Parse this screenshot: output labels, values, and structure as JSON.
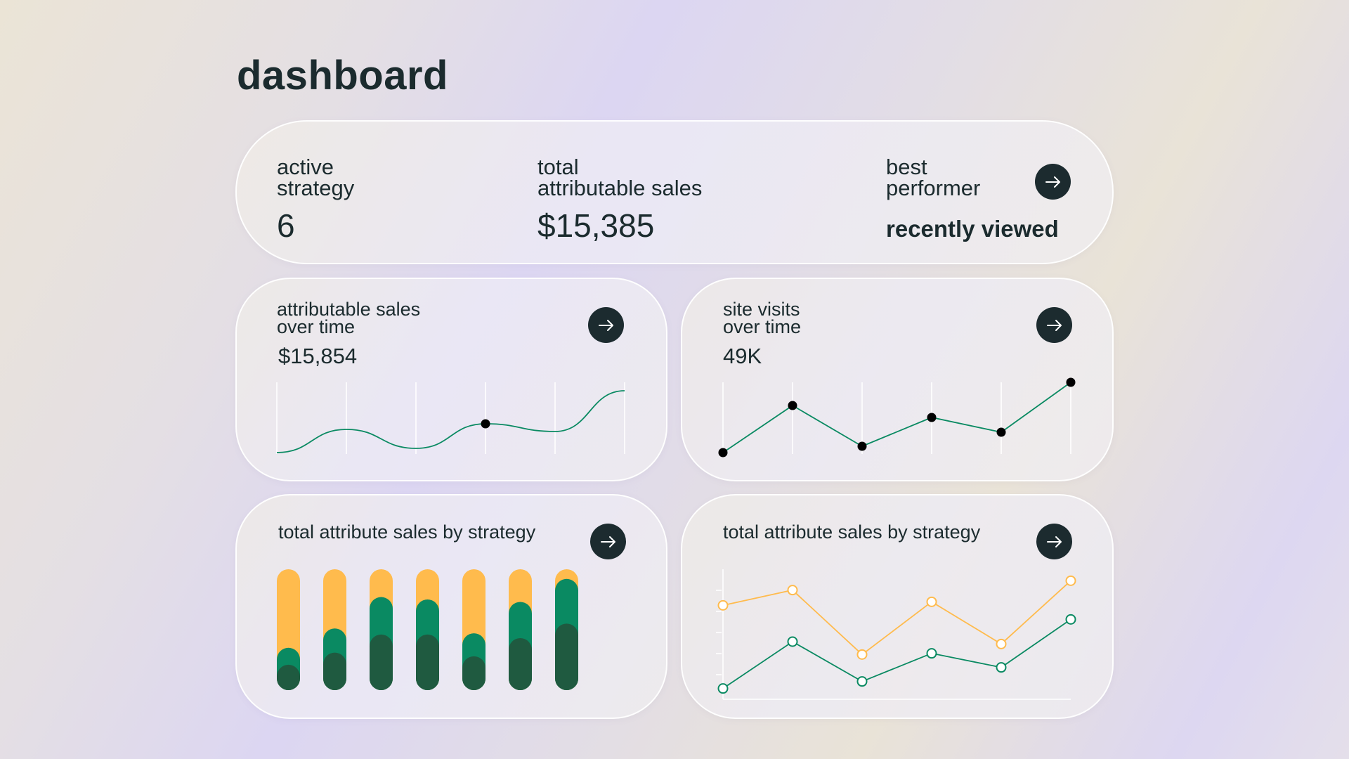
{
  "page": {
    "title": "dashboard"
  },
  "summary": {
    "active_strategy_label_1": "active",
    "active_strategy_label_2": "strategy",
    "active_strategy_value": "6",
    "total_sales_label_1": "total",
    "total_sales_label_2": "attributable sales",
    "total_sales_value": "$15,385",
    "best_performer_label_1": "best",
    "best_performer_label_2": "performer",
    "best_performer_value": "recently viewed"
  },
  "sales_card": {
    "label_1": "attributable sales",
    "label_2": "over time",
    "value": "$15,854"
  },
  "visits_card": {
    "label_1": "site visits",
    "label_2": "over time",
    "value": "49K"
  },
  "strategy_bar_card": {
    "title": "total attribute sales by strategy"
  },
  "strategy_line_card": {
    "title": "total attribute sales by strategy"
  },
  "colors": {
    "dark": "#1c2b2f",
    "green": "#0a8a62",
    "dark_green": "#1f5a40",
    "amber": "#ffbb4d"
  },
  "icons": {
    "card_action": "arrow-right-icon"
  },
  "chart_data": [
    {
      "type": "line",
      "x": [
        0,
        1,
        2,
        3,
        4,
        5
      ],
      "values": [
        0,
        33,
        6,
        41,
        30,
        88
      ],
      "highlight_index": 3,
      "ylim": [
        0,
        100
      ],
      "grid": true,
      "smooth": true
    },
    {
      "type": "line",
      "x": [
        0,
        1,
        2,
        3,
        4,
        5
      ],
      "values": [
        0,
        67,
        9,
        50,
        29,
        100
      ],
      "ylim": [
        0,
        100
      ],
      "grid": true,
      "markers": true
    },
    {
      "type": "bar",
      "stacked": true,
      "categories": [
        "1",
        "2",
        "3",
        "4",
        "5",
        "6",
        "7"
      ],
      "series": [
        {
          "values": [
            21,
            31,
            46,
            46,
            28,
            43,
            55
          ],
          "color": "#1f5a40"
        },
        {
          "values": [
            14,
            20,
            31,
            29,
            19,
            30,
            37
          ],
          "color": "#0a8a62"
        },
        {
          "values": [
            65,
            49,
            23,
            25,
            53,
            27,
            8
          ],
          "color": "#ffbb4d"
        }
      ],
      "ylim": [
        0,
        100
      ]
    },
    {
      "type": "line",
      "x": [
        0,
        1,
        2,
        3,
        4,
        5
      ],
      "series": [
        {
          "values": [
            79,
            92,
            37,
            82,
            46,
            100
          ],
          "color": "#ffbb4d"
        },
        {
          "values": [
            8,
            48,
            14,
            38,
            26,
            67
          ],
          "color": "#0a8a62"
        }
      ],
      "ylim": [
        0,
        105
      ],
      "markers": "hollow"
    }
  ]
}
